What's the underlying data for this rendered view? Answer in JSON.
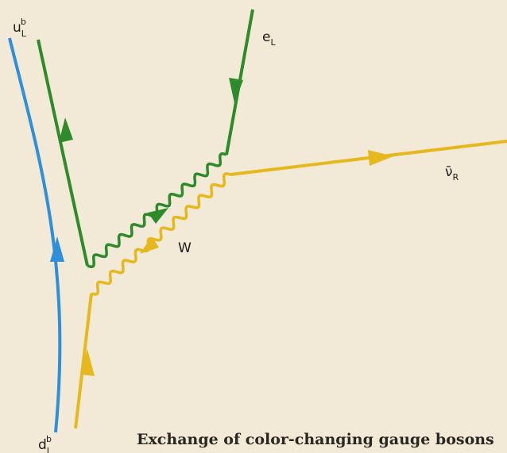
{
  "labels": {
    "u_quark": {
      "base": "u",
      "sub": "L",
      "sup": "b"
    },
    "electron": {
      "base": "e",
      "sub": "L"
    },
    "antineutrino": {
      "base": "ν̄",
      "sub": "R"
    },
    "boson": "W",
    "d_quark": {
      "base": "d",
      "sub": "L",
      "sup": "b"
    }
  },
  "caption": "Exchange of color-changing gauge bosons"
}
